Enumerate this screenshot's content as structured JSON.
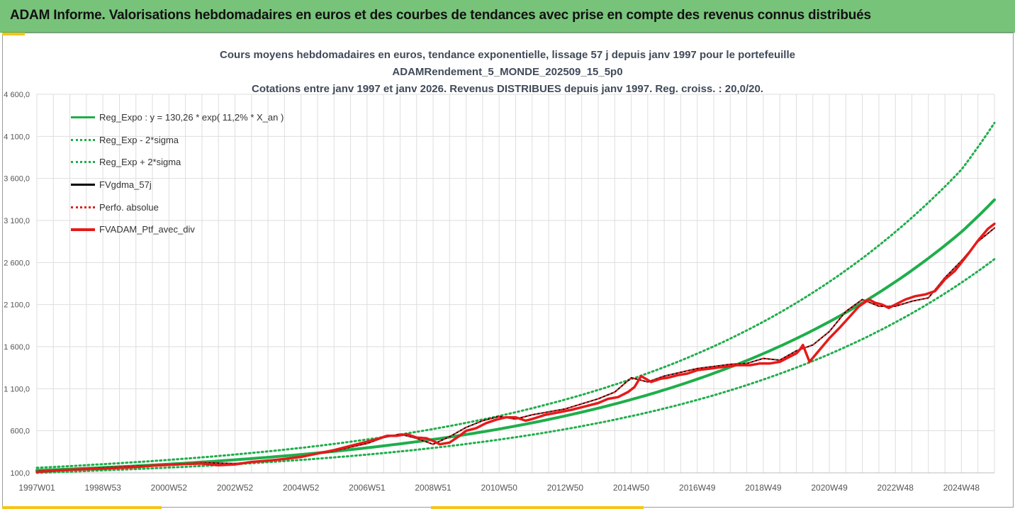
{
  "banner": {
    "title": "ADAM Informe. Valorisations hebdomadaires en euros et des courbes de tendances avec prise en compte des revenus connus distribués"
  },
  "chart_data": {
    "type": "line",
    "title_lines": [
      "Cours moyens hebdomadaires  en euros, tendance exponentielle, lissage 57 j depuis janv 1997 pour le portefeuille",
      "ADAMRendement_5_MONDE_202509_15_5p0",
      "Cotations entre janv 1997 et janv 2026. Revenus DISTRIBUES depuis janv 1997. Reg. croiss. : 20,0/20."
    ],
    "y_ticks": [
      "4 600,0",
      "4 100,0",
      "3 600,0",
      "3 100,0",
      "2 600,0",
      "2 100,0",
      "1 600,0",
      "1 100,0",
      "600,0",
      "100,0"
    ],
    "ylim": [
      100,
      4600
    ],
    "x_ticks": [
      "1997W01",
      "1998W53",
      "2000W52",
      "2002W52",
      "2004W52",
      "2006W51",
      "2008W51",
      "2010W50",
      "2012W50",
      "2014W50",
      "2016W49",
      "2018W49",
      "2020W49",
      "2022W48",
      "2024W48"
    ],
    "x_tick_years": [
      1997.0,
      1999.0,
      2001.0,
      2003.0,
      2005.0,
      2007.0,
      2009.0,
      2011.0,
      2013.0,
      2015.0,
      2017.0,
      2019.0,
      2021.0,
      2023.0,
      2025.0
    ],
    "xlim": [
      1997.0,
      2026.0
    ],
    "grid": true,
    "legend_position": "top-left",
    "colors": {
      "reg": "#1fae4b",
      "fvgdma": "#000000",
      "perf": "#e02020",
      "ptf": "#e51a1a",
      "grid": "#dedede"
    },
    "series": [
      {
        "name": "Reg_Expo : y = 130,26 * exp( 11,2% *  X_an )",
        "style": "solid-green",
        "x": [
          1997,
          1999,
          2001,
          2003,
          2005,
          2007,
          2009,
          2011,
          2013,
          2015,
          2017,
          2019,
          2021,
          2023,
          2025,
          2026
        ],
        "y": [
          130,
          163,
          204,
          255,
          318,
          398,
          497,
          621,
          777,
          971,
          1214,
          1517,
          1897,
          2371,
          2964,
          3345
        ]
      },
      {
        "name": "Reg_Exp - 2*sigma",
        "style": "dotted-green",
        "x": [
          1997,
          1999,
          2001,
          2003,
          2005,
          2007,
          2009,
          2011,
          2013,
          2015,
          2017,
          2019,
          2021,
          2023,
          2025,
          2026
        ],
        "y": [
          100,
          130,
          163,
          203,
          254,
          317,
          396,
          495,
          619,
          774,
          967,
          1209,
          1511,
          1889,
          2361,
          2640
        ]
      },
      {
        "name": "Reg_Exp + 2*sigma",
        "style": "dotted-green",
        "x": [
          1997,
          1999,
          2001,
          2003,
          2005,
          2007,
          2009,
          2011,
          2013,
          2015,
          2017,
          2019,
          2021,
          2023,
          2025,
          2026
        ],
        "y": [
          160,
          203,
          254,
          318,
          397,
          497,
          621,
          776,
          971,
          1214,
          1517,
          1896,
          2371,
          2964,
          3704,
          4260
        ]
      },
      {
        "name": "FVgdma_57j",
        "style": "solid-black",
        "x": [
          1997,
          1998,
          1999,
          2000,
          2001,
          2002,
          2003,
          2004,
          2005,
          2006,
          2007,
          2007.5,
          2008,
          2008.5,
          2009,
          2009.5,
          2010,
          2010.5,
          2011,
          2011.5,
          2012,
          2013,
          2014,
          2014.5,
          2015,
          2015.5,
          2016,
          2017,
          2018,
          2018.5,
          2019,
          2019.5,
          2020,
          2020.5,
          2021,
          2021.5,
          2022,
          2022.5,
          2023,
          2023.5,
          2024,
          2024.5,
          2025,
          2025.5,
          2026
        ],
        "y": [
          120,
          140,
          160,
          180,
          200,
          220,
          210,
          245,
          290,
          360,
          450,
          520,
          560,
          510,
          440,
          530,
          640,
          720,
          770,
          740,
          790,
          860,
          980,
          1060,
          1230,
          1180,
          1250,
          1340,
          1390,
          1400,
          1460,
          1440,
          1550,
          1620,
          1780,
          2020,
          2160,
          2080,
          2080,
          2140,
          2180,
          2420,
          2620,
          2850,
          3010
        ]
      },
      {
        "name": "Perfo. absolue",
        "style": "dotted-red",
        "x": [
          1997,
          1998,
          1999,
          2000,
          2001,
          2002,
          2003,
          2004,
          2005,
          2006,
          2007,
          2007.5,
          2008,
          2008.5,
          2009,
          2009.5,
          2010,
          2010.5,
          2011,
          2011.5,
          2012,
          2013,
          2014,
          2014.5,
          2015,
          2015.5,
          2016,
          2017,
          2018,
          2018.5,
          2019,
          2019.5,
          2020,
          2020.5,
          2021,
          2021.5,
          2022,
          2022.5,
          2023,
          2023.5,
          2024,
          2024.5,
          2025,
          2025.5,
          2026
        ],
        "y": [
          120,
          140,
          160,
          180,
          200,
          220,
          210,
          245,
          290,
          360,
          450,
          520,
          560,
          510,
          440,
          530,
          640,
          720,
          770,
          740,
          790,
          860,
          980,
          1060,
          1230,
          1180,
          1250,
          1340,
          1390,
          1400,
          1460,
          1440,
          1550,
          1620,
          1780,
          2020,
          2160,
          2080,
          2080,
          2140,
          2180,
          2420,
          2620,
          2850,
          3010
        ]
      },
      {
        "name": "FVADAM_Ptf_avec_div",
        "style": "solid-red",
        "x": [
          1997,
          1997.5,
          1998,
          1998.5,
          1999,
          1999.5,
          2000,
          2000.5,
          2001,
          2001.5,
          2002,
          2002.5,
          2003,
          2003.5,
          2004,
          2004.5,
          2005,
          2005.5,
          2006,
          2006.5,
          2007,
          2007.3,
          2007.6,
          2007.9,
          2008.2,
          2008.5,
          2008.8,
          2009.0,
          2009.2,
          2009.5,
          2009.8,
          2010,
          2010.3,
          2010.6,
          2010.9,
          2011.2,
          2011.5,
          2011.8,
          2012,
          2012.4,
          2012.8,
          2013.2,
          2013.6,
          2014,
          2014.3,
          2014.6,
          2014.9,
          2015.1,
          2015.3,
          2015.6,
          2015.9,
          2016.1,
          2016.4,
          2016.7,
          2017,
          2017.4,
          2017.8,
          2018.2,
          2018.6,
          2018.9,
          2019.2,
          2019.5,
          2019.8,
          2020.0,
          2020.1,
          2020.2,
          2020.4,
          2020.7,
          2021,
          2021.3,
          2021.6,
          2021.9,
          2022.2,
          2022.4,
          2022.6,
          2022.8,
          2023,
          2023.3,
          2023.6,
          2023.9,
          2024.2,
          2024.5,
          2024.8,
          2025.0,
          2025.2,
          2025.5,
          2025.8,
          2026
        ],
        "y": [
          110,
          125,
          135,
          145,
          150,
          160,
          170,
          185,
          195,
          205,
          210,
          190,
          200,
          230,
          245,
          265,
          290,
          330,
          370,
          420,
          470,
          500,
          540,
          540,
          560,
          520,
          510,
          480,
          440,
          460,
          540,
          600,
          630,
          690,
          730,
          760,
          760,
          720,
          740,
          790,
          820,
          850,
          890,
          930,
          980,
          1000,
          1060,
          1120,
          1250,
          1180,
          1220,
          1230,
          1260,
          1280,
          1320,
          1340,
          1360,
          1380,
          1380,
          1400,
          1400,
          1420,
          1480,
          1520,
          1560,
          1620,
          1420,
          1560,
          1700,
          1820,
          1950,
          2080,
          2160,
          2120,
          2100,
          2060,
          2100,
          2160,
          2200,
          2220,
          2260,
          2400,
          2500,
          2600,
          2700,
          2860,
          3000,
          3060
        ]
      }
    ]
  }
}
